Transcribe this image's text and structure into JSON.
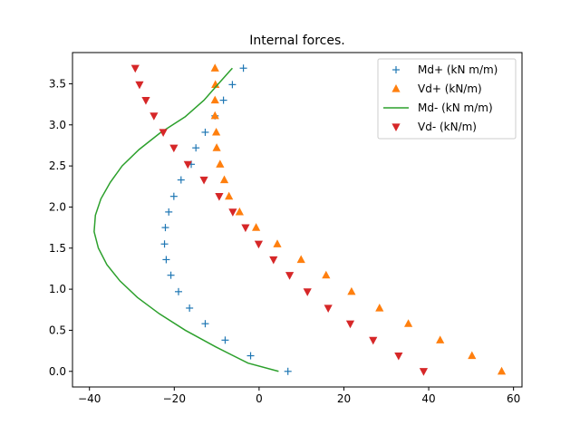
{
  "chart_data": {
    "type": "scatter",
    "title": "Internal forces.",
    "xlabel": "",
    "ylabel": "",
    "xlim": [
      -44,
      62
    ],
    "ylim": [
      -0.19,
      3.88
    ],
    "xticks": [
      -40,
      -20,
      0,
      20,
      40,
      60
    ],
    "yticks": [
      0.0,
      0.5,
      1.0,
      1.5,
      2.0,
      2.5,
      3.0,
      3.5
    ],
    "xtick_labels": [
      "−40",
      "−20",
      "0",
      "20",
      "40",
      "60"
    ],
    "ytick_labels": [
      "0.0",
      "0.5",
      "1.0",
      "1.5",
      "2.0",
      "2.5",
      "3.0",
      "3.5"
    ],
    "grid": false,
    "legend_position": "top-right",
    "series": [
      {
        "name": "Md+ (kN m/m)",
        "style": "marker",
        "marker": "plus",
        "color": "#1f77b4",
        "points": [
          [
            6.8,
            0.0
          ],
          [
            -2.0,
            0.19
          ],
          [
            -8.0,
            0.38
          ],
          [
            -12.7,
            0.58
          ],
          [
            -16.4,
            0.77
          ],
          [
            -19.0,
            0.97
          ],
          [
            -20.8,
            1.17
          ],
          [
            -21.9,
            1.36
          ],
          [
            -22.3,
            1.55
          ],
          [
            -22.1,
            1.75
          ],
          [
            -21.3,
            1.94
          ],
          [
            -20.1,
            2.13
          ],
          [
            -18.4,
            2.33
          ],
          [
            -16.0,
            2.52
          ],
          [
            -14.9,
            2.72
          ],
          [
            -12.7,
            2.91
          ],
          [
            -10.4,
            3.11
          ],
          [
            -8.4,
            3.3
          ],
          [
            -6.3,
            3.49
          ],
          [
            -3.7,
            3.69
          ]
        ]
      },
      {
        "name": "Vd+ (kN/m)",
        "style": "marker",
        "marker": "triangle-up",
        "color": "#ff7f0e",
        "points": [
          [
            57.2,
            0.0
          ],
          [
            50.2,
            0.19
          ],
          [
            42.7,
            0.38
          ],
          [
            35.2,
            0.58
          ],
          [
            28.4,
            0.77
          ],
          [
            21.8,
            0.97
          ],
          [
            15.8,
            1.17
          ],
          [
            9.9,
            1.36
          ],
          [
            4.3,
            1.55
          ],
          [
            -0.7,
            1.75
          ],
          [
            -4.6,
            1.94
          ],
          [
            -7.1,
            2.13
          ],
          [
            -8.2,
            2.33
          ],
          [
            -9.2,
            2.52
          ],
          [
            -10.0,
            2.72
          ],
          [
            -10.1,
            2.91
          ],
          [
            -10.4,
            3.11
          ],
          [
            -10.4,
            3.3
          ],
          [
            -10.3,
            3.49
          ],
          [
            -10.4,
            3.69
          ]
        ]
      },
      {
        "name": "Md- (kN m/m)",
        "style": "line",
        "color": "#2ca02c",
        "points": [
          [
            4.6,
            0.0
          ],
          [
            -2.6,
            0.1
          ],
          [
            -10.3,
            0.3
          ],
          [
            -17.4,
            0.5
          ],
          [
            -23.5,
            0.7
          ],
          [
            -28.7,
            0.9
          ],
          [
            -32.8,
            1.1
          ],
          [
            -35.9,
            1.3
          ],
          [
            -37.9,
            1.5
          ],
          [
            -38.9,
            1.7
          ],
          [
            -38.6,
            1.9
          ],
          [
            -37.3,
            2.1
          ],
          [
            -35.1,
            2.3
          ],
          [
            -32.3,
            2.5
          ],
          [
            -28.3,
            2.7
          ],
          [
            -23.4,
            2.9
          ],
          [
            -17.4,
            3.1
          ],
          [
            -13.0,
            3.3
          ],
          [
            -9.6,
            3.5
          ],
          [
            -6.3,
            3.69
          ]
        ]
      },
      {
        "name": "Vd- (kN/m)",
        "style": "marker",
        "marker": "triangle-down",
        "color": "#d62728",
        "points": [
          [
            38.8,
            0.0
          ],
          [
            32.9,
            0.19
          ],
          [
            26.9,
            0.38
          ],
          [
            21.5,
            0.58
          ],
          [
            16.3,
            0.77
          ],
          [
            11.4,
            0.97
          ],
          [
            7.2,
            1.17
          ],
          [
            3.4,
            1.36
          ],
          [
            -0.1,
            1.55
          ],
          [
            -3.2,
            1.75
          ],
          [
            -6.2,
            1.94
          ],
          [
            -9.4,
            2.13
          ],
          [
            -13.0,
            2.33
          ],
          [
            -16.8,
            2.52
          ],
          [
            -20.1,
            2.72
          ],
          [
            -22.6,
            2.91
          ],
          [
            -24.8,
            3.11
          ],
          [
            -26.7,
            3.3
          ],
          [
            -28.2,
            3.49
          ],
          [
            -29.2,
            3.69
          ]
        ]
      }
    ]
  }
}
